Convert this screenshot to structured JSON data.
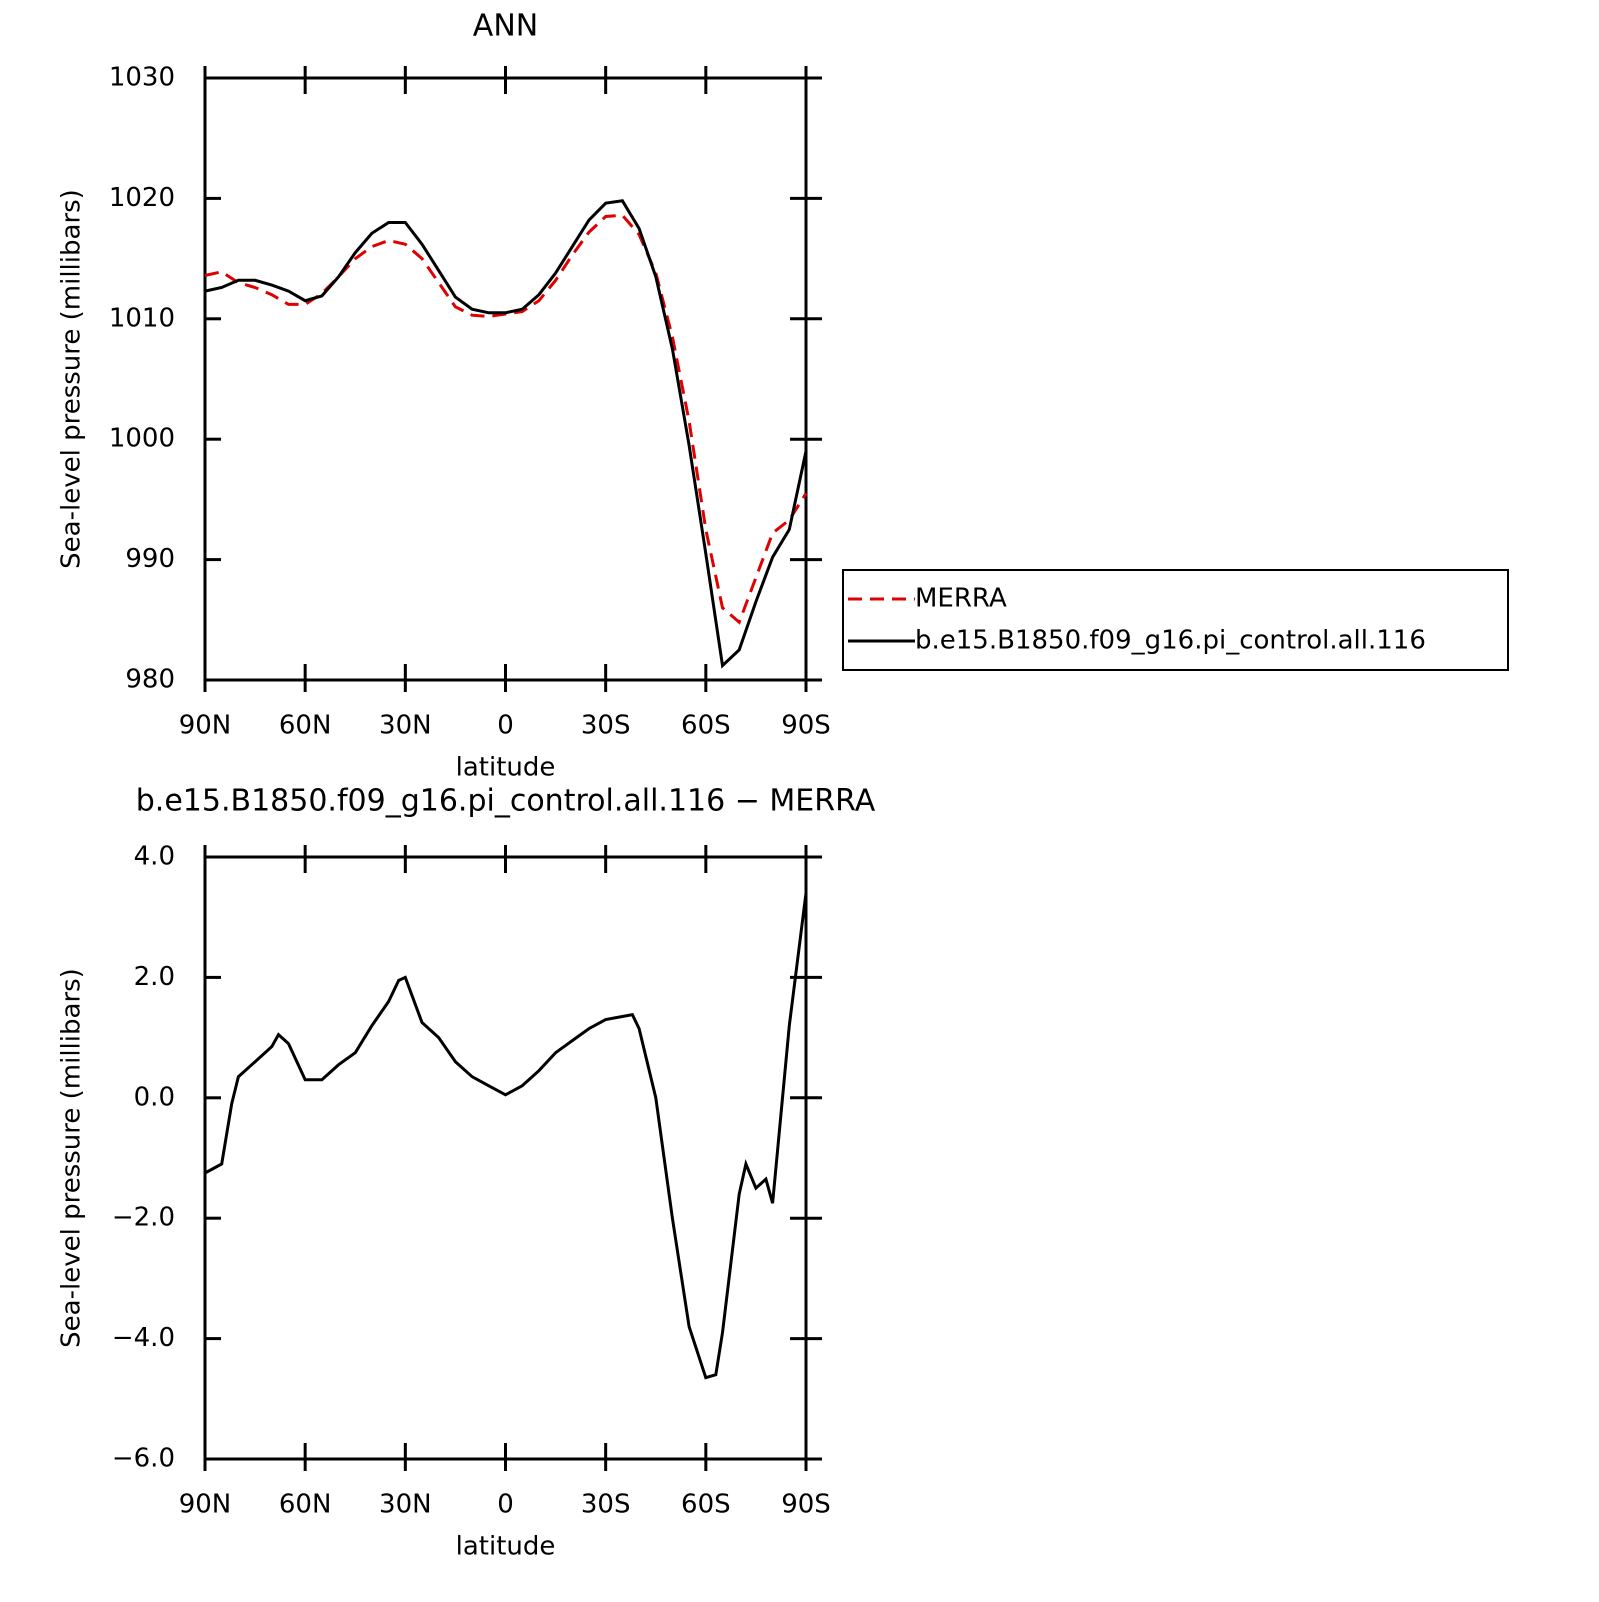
{
  "chart_data": [
    {
      "type": "line",
      "title": "ANN",
      "xlabel": "latitude",
      "ylabel": "Sea-level pressure (millibars)",
      "x": [
        90,
        85,
        80,
        75,
        70,
        65,
        60,
        55,
        50,
        45,
        40,
        35,
        30,
        25,
        20,
        15,
        10,
        5,
        0,
        -5,
        -10,
        -15,
        -20,
        -25,
        -30,
        -35,
        -40,
        -45,
        -50,
        -55,
        -60,
        -65,
        -70,
        -75,
        -80,
        -85,
        -90
      ],
      "series": [
        {
          "name": "MERRA",
          "color": "#e00000",
          "dashed": true,
          "values": [
            1013.6,
            1013.9,
            1013.0,
            1012.6,
            1012.0,
            1011.2,
            1011.2,
            1012.1,
            1013.5,
            1015.0,
            1016.0,
            1016.5,
            1016.2,
            1015.0,
            1013.0,
            1011.0,
            1010.3,
            1010.2,
            1010.4,
            1010.6,
            1011.5,
            1013.2,
            1015.3,
            1017.2,
            1018.5,
            1018.6,
            1017.0,
            1013.8,
            1008.5,
            1001.5,
            992.5,
            986.0,
            984.8,
            988.5,
            992.2,
            993.3,
            995.5
          ]
        },
        {
          "name": "b.e15.B1850.f09_g16.pi_control.all.116",
          "color": "#000000",
          "dashed": false,
          "values": [
            1012.3,
            1012.6,
            1013.2,
            1013.2,
            1012.8,
            1012.3,
            1011.5,
            1011.9,
            1013.5,
            1015.5,
            1017.1,
            1018.0,
            1018.0,
            1016.2,
            1014.0,
            1011.8,
            1010.8,
            1010.5,
            1010.5,
            1010.8,
            1012.0,
            1013.8,
            1016.0,
            1018.2,
            1019.6,
            1019.8,
            1017.5,
            1013.5,
            1007.5,
            999.5,
            990.5,
            981.2,
            982.5,
            986.5,
            990.2,
            992.5,
            999.0
          ]
        }
      ],
      "xlim": [
        90,
        -90
      ],
      "xticks": [
        {
          "value": 90,
          "label": "90N"
        },
        {
          "value": 60,
          "label": "60N"
        },
        {
          "value": 30,
          "label": "30N"
        },
        0,
        {
          "value": -30,
          "label": "30S"
        },
        {
          "value": -60,
          "label": "60S"
        },
        {
          "value": -90,
          "label": "90S"
        }
      ],
      "ylim": [
        980,
        1030
      ],
      "yticks": [
        980,
        990,
        1000,
        1010,
        1020,
        1030
      ],
      "legend": "right"
    },
    {
      "type": "line",
      "title": "b.e15.B1850.f09_g16.pi_control.all.116 − MERRA",
      "xlabel": "latitude",
      "ylabel": "Sea-level pressure (millibars)",
      "x": [
        90,
        85,
        82,
        80,
        75,
        70,
        68,
        65,
        60,
        55,
        50,
        45,
        40,
        35,
        32,
        30,
        25,
        20,
        15,
        10,
        5,
        0,
        -5,
        -10,
        -15,
        -20,
        -25,
        -30,
        -35,
        -38,
        -40,
        -45,
        -50,
        -55,
        -60,
        -63,
        -65,
        -70,
        -72,
        -75,
        -78,
        -80,
        -85,
        -90
      ],
      "color": "#000000",
      "values": [
        -1.25,
        -1.1,
        -0.1,
        0.35,
        0.6,
        0.85,
        1.05,
        0.9,
        0.3,
        0.3,
        0.55,
        0.75,
        1.2,
        1.6,
        1.95,
        2.0,
        1.25,
        1.0,
        0.6,
        0.35,
        0.2,
        0.05,
        0.2,
        0.45,
        0.75,
        0.95,
        1.15,
        1.3,
        1.35,
        1.38,
        1.15,
        0.0,
        -2.0,
        -3.8,
        -4.65,
        -4.6,
        -3.9,
        -1.6,
        -1.1,
        -1.5,
        -1.35,
        -1.75,
        1.2,
        3.4
      ],
      "xlim": [
        90,
        -90
      ],
      "xticks": [
        {
          "value": 90,
          "label": "90N"
        },
        {
          "value": 60,
          "label": "60N"
        },
        {
          "value": 30,
          "label": "30N"
        },
        0,
        {
          "value": -30,
          "label": "30S"
        },
        {
          "value": -60,
          "label": "60S"
        },
        {
          "value": -90,
          "label": "90S"
        }
      ],
      "ylim": [
        -6,
        4
      ],
      "yticks": [
        {
          "value": -6,
          "label": "−6.0"
        },
        {
          "value": -4,
          "label": "−4.0"
        },
        {
          "value": -2,
          "label": "−2.0"
        },
        {
          "value": 0,
          "label": "0.0"
        },
        {
          "value": 2,
          "label": "2.0"
        },
        {
          "value": 4,
          "label": "4.0"
        }
      ]
    }
  ]
}
